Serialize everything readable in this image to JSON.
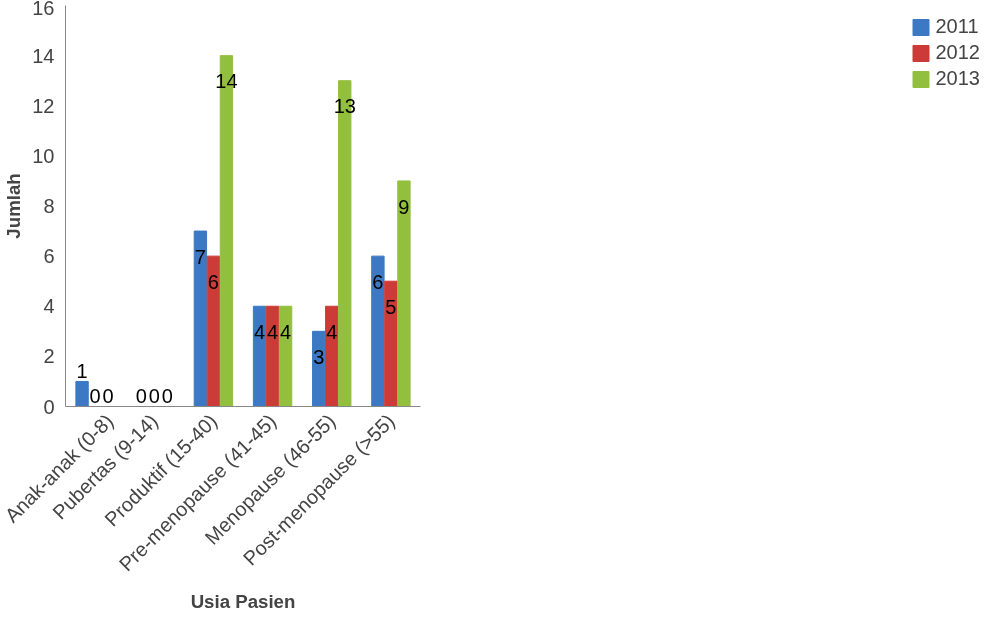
{
  "chart_data": {
    "type": "bar",
    "xlabel": "Usia Pasien",
    "ylabel": "Jumlah",
    "categories": [
      "Anak-anak (0-8)",
      "Pubertas (9-14)",
      "Produktif (15-40)",
      "Pre-menopause (41-45)",
      "Menopause (46-55)",
      "Post-menopause (>55)"
    ],
    "series": [
      {
        "name": "2011",
        "color": "#3c78c3",
        "values": [
          1,
          0,
          7,
          4,
          3,
          6
        ]
      },
      {
        "name": "2012",
        "color": "#cc3b38",
        "values": [
          0,
          0,
          6,
          4,
          4,
          5
        ]
      },
      {
        "name": "2013",
        "color": "#93bf3e",
        "values": [
          0,
          0,
          14,
          4,
          13,
          9
        ]
      }
    ],
    "ylim": [
      0,
      16
    ],
    "yticks": [
      0,
      2,
      4,
      6,
      8,
      10,
      12,
      14,
      16
    ],
    "data_labels": true,
    "legend": "right",
    "grid": false
  }
}
